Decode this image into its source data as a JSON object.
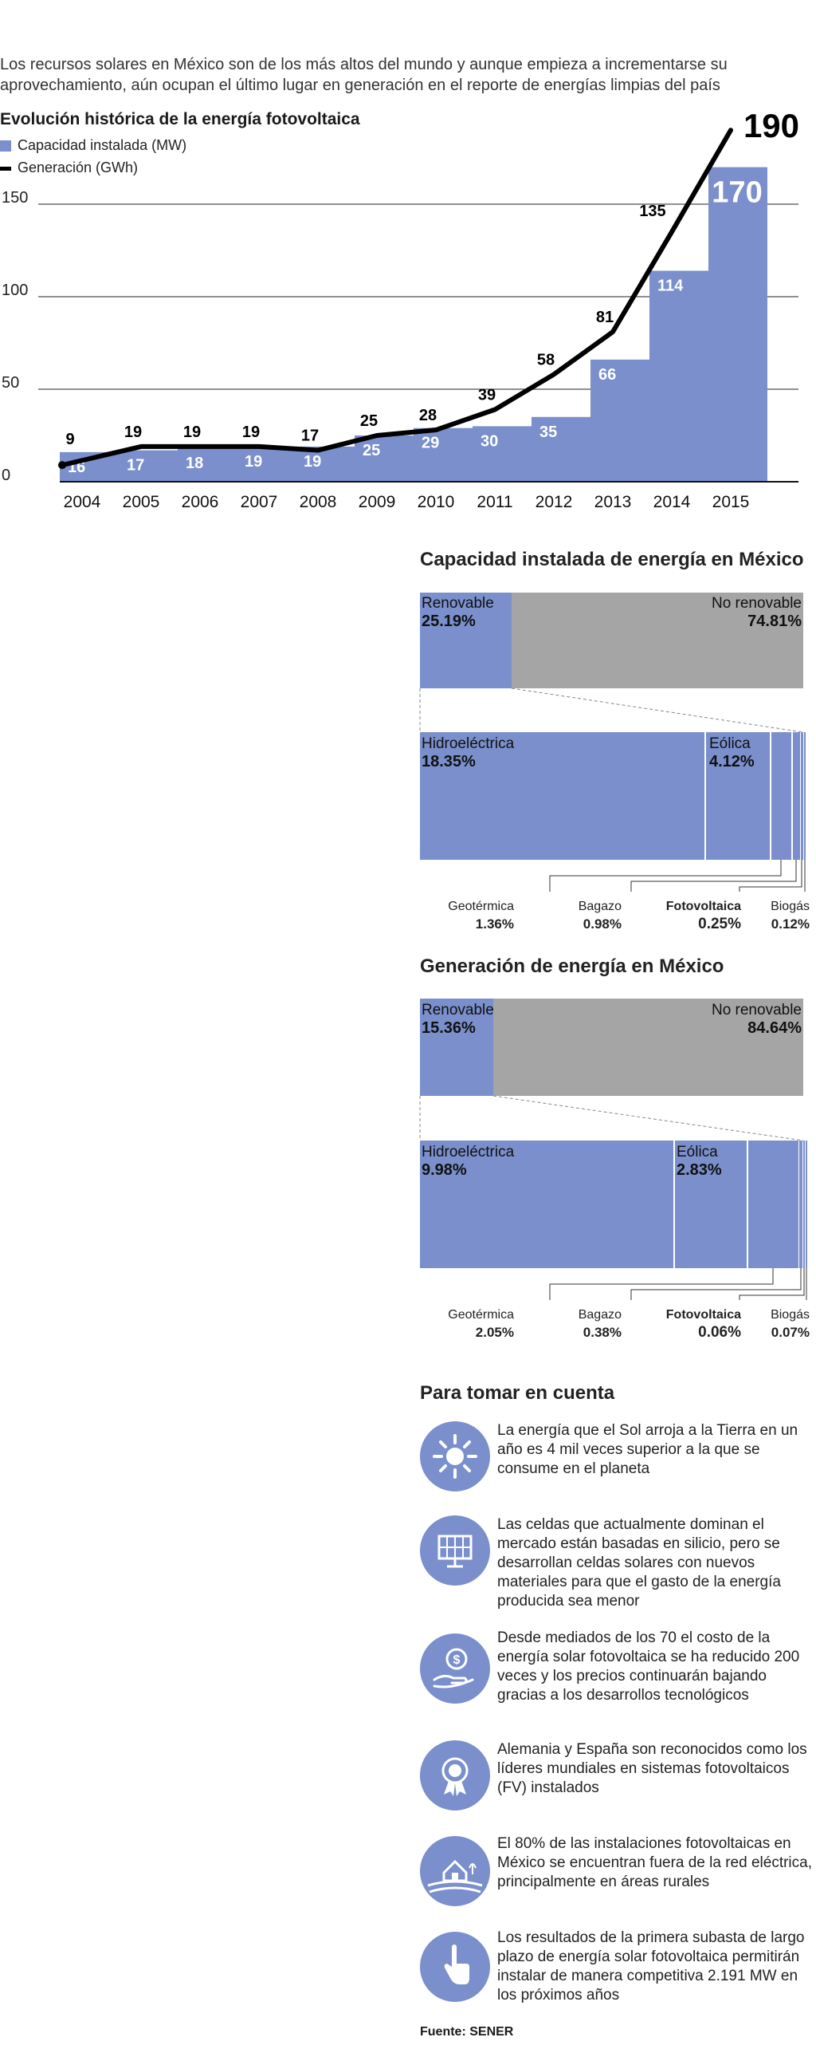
{
  "intro": "Los recursos solares en México son de los más altos del mundo y aunque empieza a incrementarse su aprovechamiento, aún ocupan el último lugar en generación en el reporte de energías limpias del país",
  "chart_data": {
    "type": "bar",
    "title": "Evolución histórica de la energía fotovoltaica",
    "categories": [
      "2004",
      "2005",
      "2006",
      "2007",
      "2008",
      "2009",
      "2010",
      "2011",
      "2012",
      "2013",
      "2014",
      "2015"
    ],
    "series": [
      {
        "name": "Capacidad instalada (MW)",
        "type": "bar",
        "color": "#7a8fcc",
        "values": [
          16,
          17,
          18,
          19,
          19,
          25,
          29,
          30,
          35,
          66,
          114,
          170
        ]
      },
      {
        "name": "Generación (GWh)",
        "type": "line",
        "color": "#000000",
        "values": [
          9,
          19,
          19,
          19,
          17,
          25,
          28,
          39,
          58,
          81,
          135,
          190
        ]
      }
    ],
    "yticks": [
      0,
      50,
      100,
      150
    ],
    "ylim": [
      0,
      190
    ],
    "grid": true
  },
  "capacidad": {
    "title": "Capacidad instalada de energía en México",
    "renovable_label": "Renovable",
    "renovable_value": "25.19%",
    "norenovable_label": "No renovable",
    "norenovable_value": "74.81%",
    "hidro_label": "Hidroeléctrica",
    "hidro_value": "18.35%",
    "eolica_label": "Eólica",
    "eolica_value": "4.12%",
    "geo_label": "Geotérmica",
    "geo_value": "1.36%",
    "bagazo_label": "Bagazo",
    "bagazo_value": "0.98%",
    "foto_label": "Fotovoltaica",
    "foto_value": "0.25%",
    "biogas_label": "Biogás",
    "biogas_value": "0.12%"
  },
  "generacion": {
    "title": "Generación de energía en México",
    "renovable_label": "Renovable",
    "renovable_value": "15.36%",
    "norenovable_label": "No renovable",
    "norenovable_value": "84.64%",
    "hidro_label": "Hidroeléctrica",
    "hidro_value": "9.98%",
    "eolica_label": "Eólica",
    "eolica_value": "2.83%",
    "geo_label": "Geotérmica",
    "geo_value": "2.05%",
    "bagazo_label": "Bagazo",
    "bagazo_value": "0.38%",
    "foto_label": "Fotovoltaica",
    "foto_value": "0.06%",
    "biogas_label": "Biogás",
    "biogas_value": "0.07%"
  },
  "notes": {
    "title": "Para tomar en cuenta",
    "items": [
      {
        "icon": "sun-icon",
        "text": "La energía que el Sol arroja a la Tierra en un año es 4 mil veces superior a la que se consume en el planeta"
      },
      {
        "icon": "solar-panel-icon",
        "text": "Las celdas que actualmente dominan el mercado están basadas en silicio, pero se desarrollan celdas solares con nuevos materiales para que el gasto de la energía producida sea menor"
      },
      {
        "icon": "money-hand-icon",
        "text": "Desde mediados de los 70 el costo de la energía solar fotovoltaica se ha reducido 200 veces y los precios continuarán bajando gracias a los desarrollos tecnológicos"
      },
      {
        "icon": "award-ribbon-icon",
        "text": "Alemania y España  son reconocidos como los líderes mundiales en sistemas fotovoltaicos (FV) instalados"
      },
      {
        "icon": "rural-house-icon",
        "text": "El 80% de las instalaciones fotovoltaicas en México se encuentran fuera de la red eléctrica, principalmente en áreas rurales"
      },
      {
        "icon": "pointing-hand-icon",
        "text": "Los resultados de la primera subasta de largo plazo de energía solar fotovoltaica permitirán instalar de manera competitiva 2.191 MW en los próximos años"
      }
    ]
  },
  "source": "Fuente: SENER"
}
